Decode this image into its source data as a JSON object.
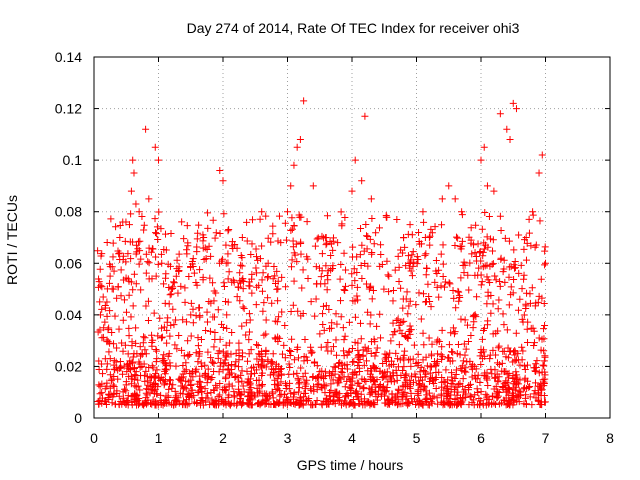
{
  "chart_data": {
    "type": "scatter",
    "title": "Day 274 of 2014, Rate Of TEC Index for receiver ohi3",
    "xlabel": "GPS time / hours",
    "ylabel": "ROTI / TECUs",
    "xlim": [
      0,
      8
    ],
    "ylim": [
      0,
      0.14
    ],
    "xticks": [
      0,
      1,
      2,
      3,
      4,
      5,
      6,
      7,
      8
    ],
    "yticks": [
      0,
      0.02,
      0.04,
      0.06,
      0.08,
      0.1,
      0.12,
      0.14
    ],
    "xtick_labels": [
      "0",
      "1",
      "2",
      "3",
      "4",
      "5",
      "6",
      "7",
      "8"
    ],
    "ytick_labels": [
      "0",
      "0.02",
      "0.04",
      "0.06",
      "0.08",
      "0.1",
      "0.12",
      "0.14"
    ],
    "grid": true,
    "marker": "+",
    "marker_color": "#ff0000",
    "series": [
      {
        "name": "ohi3",
        "x_range": [
          0.05,
          7.0
        ],
        "typical_range": [
          0.005,
          0.025
        ],
        "max_value": 0.123,
        "x": [
          0.1,
          0.15,
          0.2,
          0.25,
          0.3,
          0.4,
          0.55,
          0.58,
          0.6,
          0.62,
          0.65,
          0.7,
          0.8,
          0.85,
          0.95,
          1.0,
          1.05,
          1.2,
          1.5,
          1.7,
          1.95,
          2.0,
          2.05,
          2.3,
          2.6,
          2.7,
          3.0,
          3.05,
          3.1,
          3.15,
          3.2,
          3.25,
          3.4,
          3.6,
          3.7,
          4.0,
          4.05,
          4.15,
          4.2,
          4.3,
          4.8,
          4.9,
          5.1,
          5.2,
          5.4,
          5.5,
          5.6,
          5.7,
          6.0,
          6.05,
          6.1,
          6.2,
          6.3,
          6.4,
          6.45,
          6.5,
          6.55,
          6.7,
          6.8,
          6.9,
          6.95,
          7.0
        ],
        "y": [
          0.04,
          0.035,
          0.045,
          0.055,
          0.05,
          0.07,
          0.075,
          0.088,
          0.1,
          0.095,
          0.083,
          0.08,
          0.112,
          0.085,
          0.105,
          0.1,
          0.06,
          0.05,
          0.04,
          0.07,
          0.096,
          0.092,
          0.06,
          0.07,
          0.08,
          0.06,
          0.08,
          0.09,
          0.098,
          0.105,
          0.108,
          0.123,
          0.09,
          0.07,
          0.065,
          0.088,
          0.1,
          0.092,
          0.117,
          0.085,
          0.07,
          0.075,
          0.08,
          0.07,
          0.085,
          0.09,
          0.085,
          0.08,
          0.1,
          0.105,
          0.09,
          0.088,
          0.118,
          0.112,
          0.108,
          0.122,
          0.12,
          0.07,
          0.08,
          0.095,
          0.102,
          0.06
        ]
      }
    ]
  }
}
